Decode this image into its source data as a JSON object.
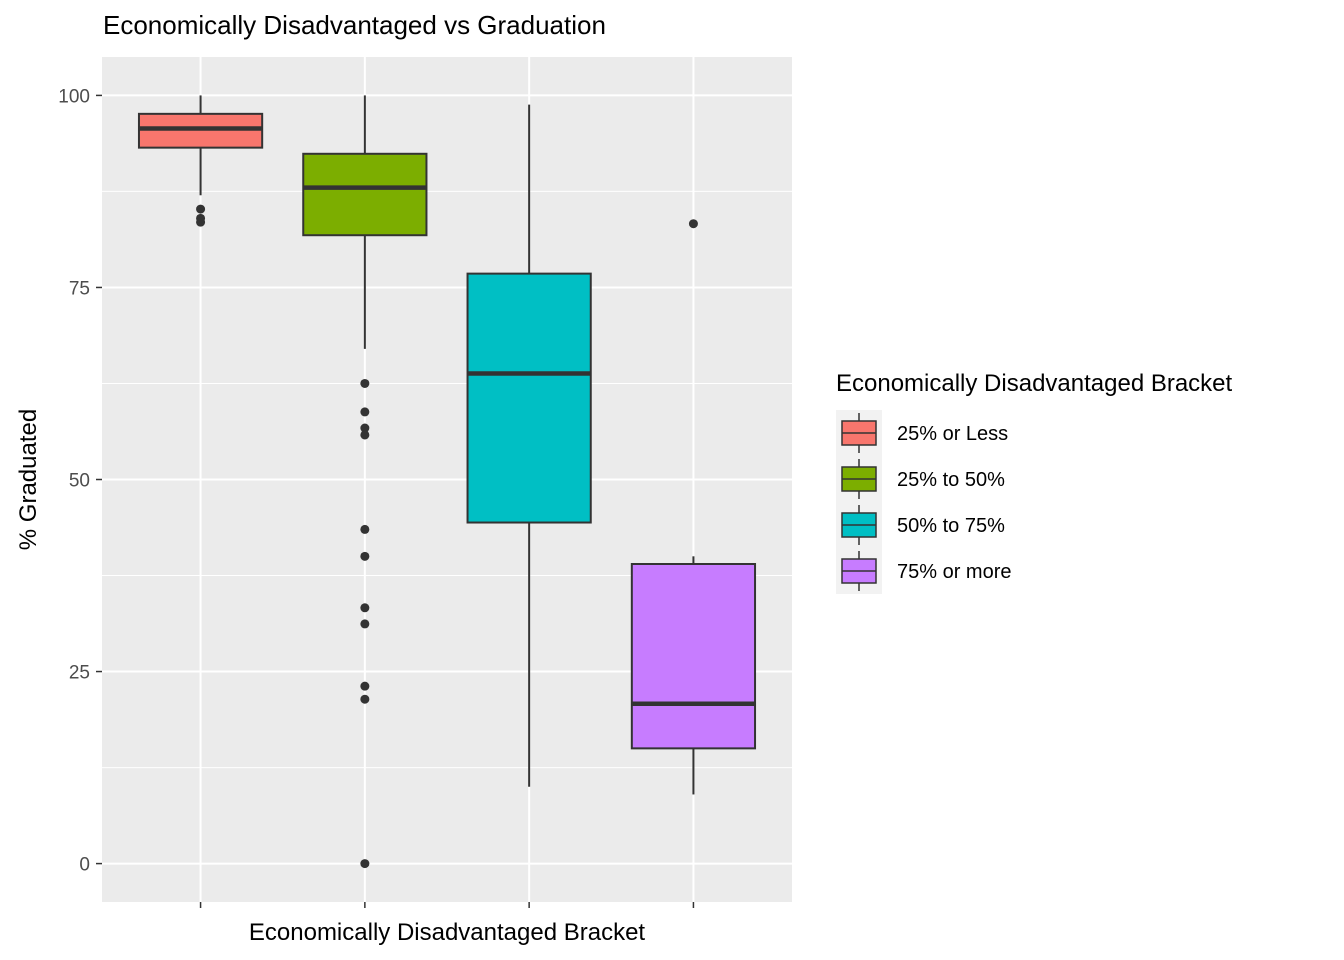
{
  "chart_data": {
    "type": "boxplot",
    "title": "Economically Disadvantaged vs Graduation",
    "xlabel": "Economically Disadvantaged Bracket",
    "ylabel": "% Graduated",
    "ylim": [
      -5,
      105
    ],
    "yticks": [
      0,
      25,
      50,
      75,
      100
    ],
    "grid": true,
    "background": "#ebebeb",
    "legend": {
      "title": "Economically Disadvantaged Bracket",
      "position": "right"
    },
    "series": [
      {
        "name": "25% or Less",
        "color": "#f8766d",
        "whisker_low": 87.0,
        "q1": 93.2,
        "median": 95.7,
        "q3": 97.6,
        "whisker_high": 100,
        "outliers": [
          85.2,
          84.0,
          83.5
        ]
      },
      {
        "name": "25% to 50%",
        "color": "#7cae00",
        "whisker_low": 67.0,
        "q1": 81.8,
        "median": 88.0,
        "q3": 92.4,
        "whisker_high": 100,
        "outliers": [
          62.5,
          58.8,
          56.7,
          55.8,
          43.5,
          40.0,
          33.3,
          31.2,
          23.1,
          21.4,
          0
        ]
      },
      {
        "name": "50% to 75%",
        "color": "#00bfc4",
        "whisker_low": 10.0,
        "q1": 44.4,
        "median": 63.8,
        "q3": 76.8,
        "whisker_high": 98.8,
        "outliers": []
      },
      {
        "name": "75% or more",
        "color": "#c77cff",
        "whisker_low": 9.0,
        "q1": 15.0,
        "median": 20.8,
        "q3": 39.0,
        "whisker_high": 40.0,
        "outliers": [
          83.3
        ]
      }
    ]
  }
}
